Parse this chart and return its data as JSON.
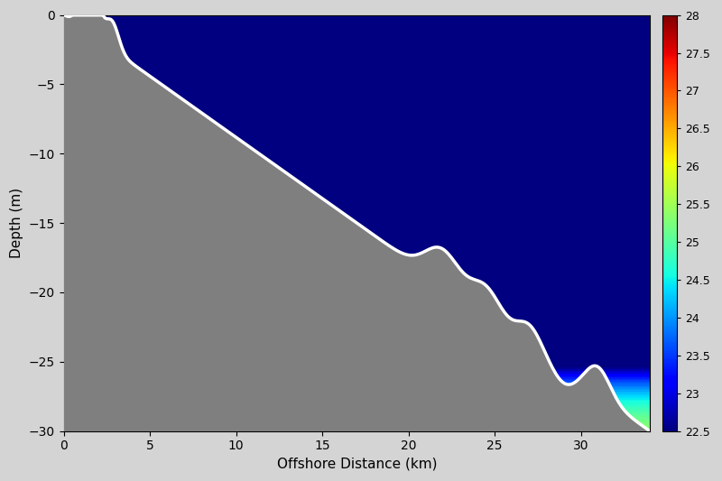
{
  "title": "",
  "xlabel": "Offshore Distance (km)",
  "ylabel": "Depth (m)",
  "xlim": [
    0,
    34
  ],
  "ylim": [
    -30,
    0
  ],
  "xticks": [
    0,
    5,
    10,
    15,
    20,
    25,
    30
  ],
  "yticks": [
    0,
    -5,
    -10,
    -15,
    -20,
    -25,
    -30
  ],
  "temp_min": 22.5,
  "temp_max": 28,
  "colorbar_ticks": [
    22.5,
    23,
    23.5,
    24,
    24.5,
    25,
    25.5,
    26,
    26.5,
    27,
    27.5,
    28
  ],
  "bg_color": "#d4d4d4",
  "figsize": [
    8.0,
    5.33
  ],
  "dpi": 100
}
